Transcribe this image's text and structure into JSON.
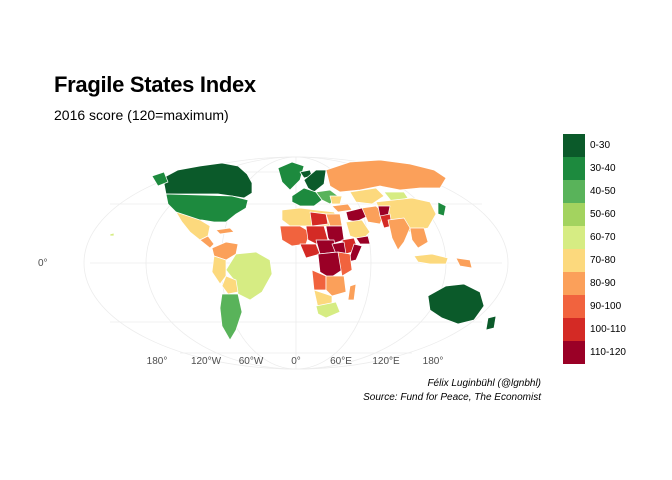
{
  "title": "Fragile States Index",
  "subtitle": "2016 score (120=maximum)",
  "caption": {
    "line1": "Félix Luginbühl (@lgnbhl)",
    "line2": "Source: Fund for Peace, The Economist"
  },
  "axis": {
    "longitude_labels": [
      "180°",
      "120°W",
      "60°W",
      "0°",
      "60°E",
      "120°E",
      "180°"
    ],
    "latitude_labels": [
      "0°"
    ]
  },
  "legend": {
    "items": [
      {
        "label": "0-30",
        "color": "#0b5a2a"
      },
      {
        "label": "30-40",
        "color": "#1d8a3e"
      },
      {
        "label": "40-50",
        "color": "#59b35a"
      },
      {
        "label": "50-60",
        "color": "#a3d35f"
      },
      {
        "label": "60-70",
        "color": "#d6ec83"
      },
      {
        "label": "70-80",
        "color": "#fcd97d"
      },
      {
        "label": "80-90",
        "color": "#fba05a"
      },
      {
        "label": "90-100",
        "color": "#f1633e"
      },
      {
        "label": "100-110",
        "color": "#d42a25"
      },
      {
        "label": "110-120",
        "color": "#9a0026"
      }
    ]
  },
  "colors": {
    "graticule": "#ececec",
    "country_border": "#ffffff"
  }
}
